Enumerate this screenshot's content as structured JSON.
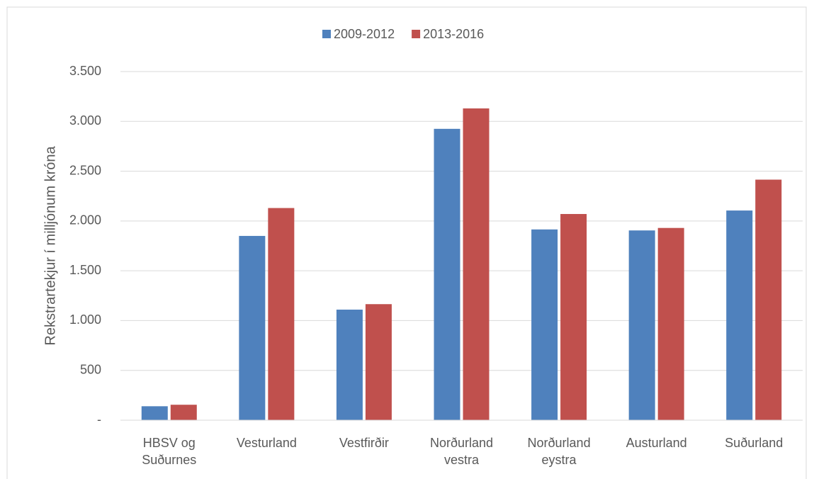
{
  "chart_data": {
    "type": "bar",
    "y_label": "Rekstrartekjur í milljónum króna",
    "categories": [
      "HBSV og\nSuðurnes",
      "Vesturland",
      "Vestfirðir",
      "Norðurland\nvestra",
      "Norðurland\neystra",
      "Austurland",
      "Suðurland"
    ],
    "series": [
      {
        "name": "2009-2012",
        "color": "#4f81bd",
        "values": [
          140,
          1850,
          1110,
          2925,
          1915,
          1905,
          2105
        ]
      },
      {
        "name": "2013-2016",
        "color": "#c0504d",
        "values": [
          155,
          2130,
          1165,
          3130,
          2070,
          1930,
          2415
        ]
      }
    ],
    "ylim": [
      0,
      3500
    ],
    "yticks": [
      {
        "value": 0,
        "label": "-"
      },
      500,
      {
        "value": 1000,
        "label": "1.000"
      },
      {
        "value": 1500,
        "label": "1.500"
      },
      {
        "value": 2000,
        "label": "2.000"
      },
      {
        "value": 2500,
        "label": "2.500"
      },
      {
        "value": 3000,
        "label": "3.000"
      },
      {
        "value": 3500,
        "label": "3.500"
      }
    ],
    "grid": true,
    "legend": "top"
  }
}
